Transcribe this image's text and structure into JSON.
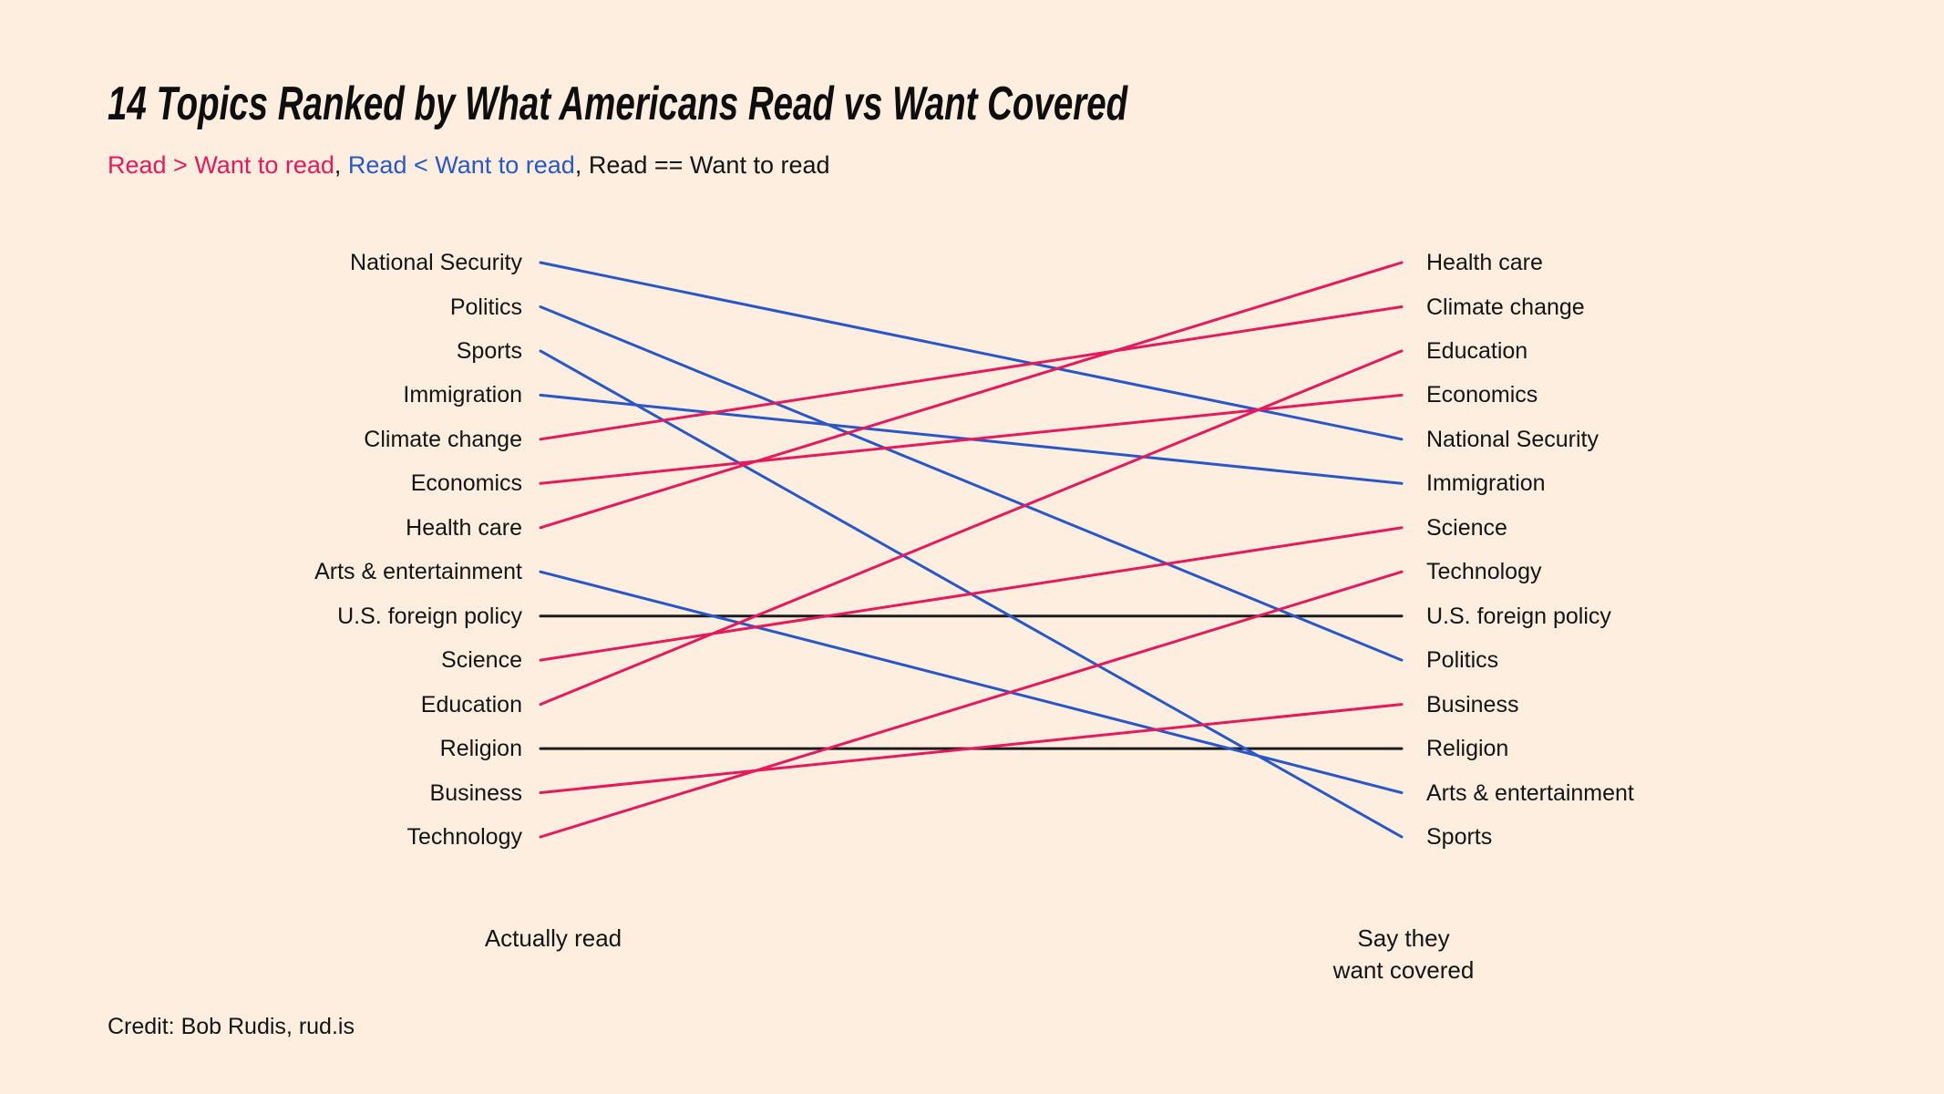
{
  "title": "14 Topics Ranked by What Americans Read vs Want Covered",
  "legend": {
    "read_gt_want": "Read > Want to read",
    "separator": ", ",
    "read_lt_want": "Read < Want to read",
    "read_eq_want": "Read == Want to read"
  },
  "axis": {
    "left": "Actually read",
    "right_line1": "Say they",
    "right_line2": "want covered"
  },
  "credit": "Credit: Bob Rudis, rud.is",
  "colors": {
    "background": "#fdeee0",
    "read_gt_want": "#e6195c",
    "read_lt_want": "#2a57c6",
    "read_eq_want": "#1c1c1c",
    "text": "#141414"
  },
  "chart_data": {
    "type": "slopegraph",
    "left_axis_title": "Actually read",
    "right_axis_title": "Say they want covered",
    "legend_position": "top-left",
    "topics": [
      {
        "topic": "National Security",
        "read_rank": 1,
        "want_rank": 5,
        "relation": "read_lt_want"
      },
      {
        "topic": "Politics",
        "read_rank": 2,
        "want_rank": 10,
        "relation": "read_lt_want"
      },
      {
        "topic": "Sports",
        "read_rank": 3,
        "want_rank": 14,
        "relation": "read_lt_want"
      },
      {
        "topic": "Immigration",
        "read_rank": 4,
        "want_rank": 6,
        "relation": "read_lt_want"
      },
      {
        "topic": "Climate change",
        "read_rank": 5,
        "want_rank": 2,
        "relation": "read_gt_want"
      },
      {
        "topic": "Economics",
        "read_rank": 6,
        "want_rank": 4,
        "relation": "read_gt_want"
      },
      {
        "topic": "Health care",
        "read_rank": 7,
        "want_rank": 1,
        "relation": "read_gt_want"
      },
      {
        "topic": "Arts & entertainment",
        "read_rank": 8,
        "want_rank": 13,
        "relation": "read_lt_want"
      },
      {
        "topic": "U.S. foreign policy",
        "read_rank": 9,
        "want_rank": 9,
        "relation": "read_eq_want"
      },
      {
        "topic": "Science",
        "read_rank": 10,
        "want_rank": 7,
        "relation": "read_gt_want"
      },
      {
        "topic": "Education",
        "read_rank": 11,
        "want_rank": 3,
        "relation": "read_gt_want"
      },
      {
        "topic": "Religion",
        "read_rank": 12,
        "want_rank": 12,
        "relation": "read_eq_want"
      },
      {
        "topic": "Business",
        "read_rank": 13,
        "want_rank": 11,
        "relation": "read_gt_want"
      },
      {
        "topic": "Technology",
        "read_rank": 14,
        "want_rank": 8,
        "relation": "read_gt_want"
      }
    ]
  }
}
